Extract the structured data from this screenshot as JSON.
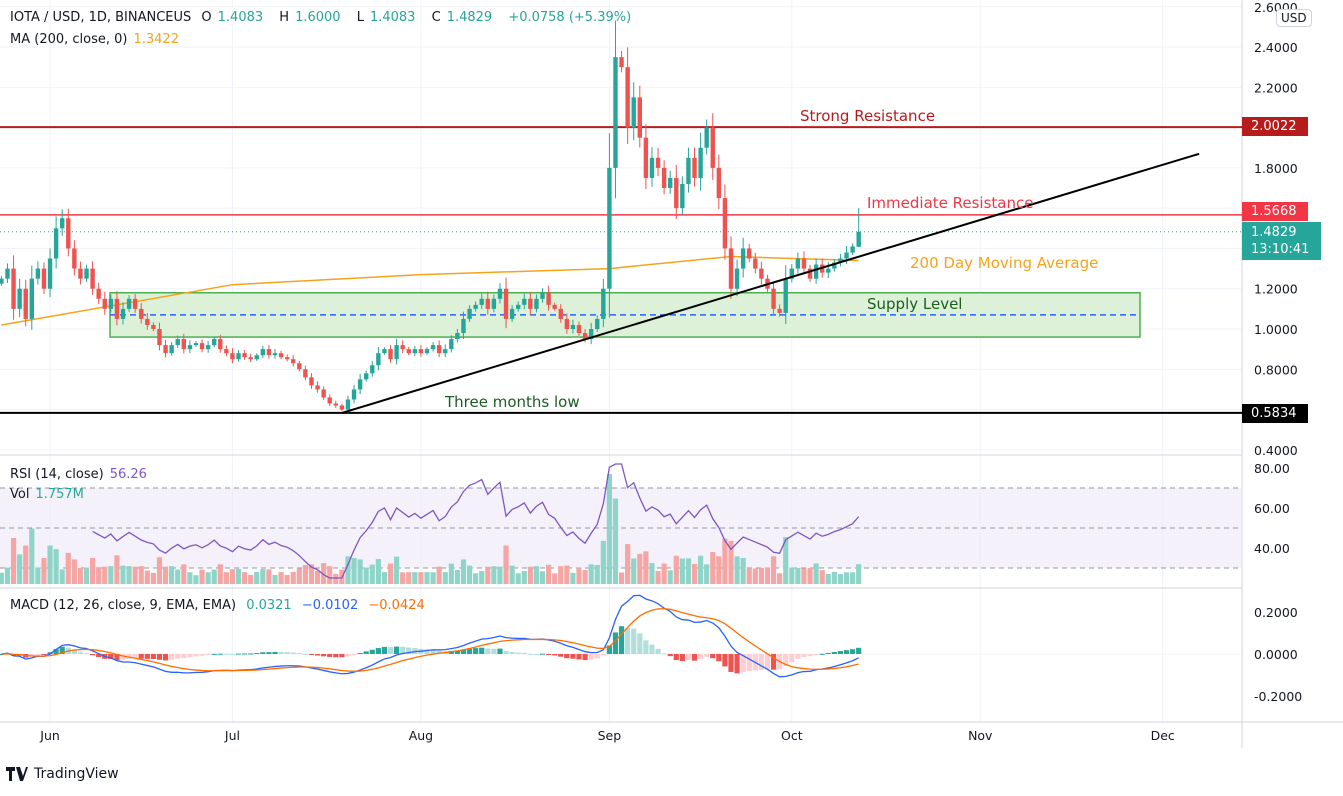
{
  "header": {
    "symbol": "IOTA / USD, 1D, BINANCEUS",
    "o_label": "O",
    "open": "1.4083",
    "h_label": "H",
    "high": "1.6000",
    "l_label": "L",
    "low": "1.4083",
    "c_label": "C",
    "close": "1.4829",
    "change": "+0.0758 (+5.39%)"
  },
  "ma_legend": {
    "label": "MA (200, close, 0)",
    "value": "1.3422"
  },
  "rsi_legend": {
    "label": "RSI (14, close)",
    "value": "56.26"
  },
  "vol_legend": {
    "label": "Vol",
    "value": "1.757M"
  },
  "macd_legend": {
    "label": "MACD (12, 26, close, 9, EMA, EMA)",
    "hist": "0.0321",
    "macd": "−0.0102",
    "signal": "−0.0424"
  },
  "currency_label": "USD",
  "price_tags": {
    "strong": "2.0022",
    "immediate": "1.5668",
    "last": "1.4829",
    "countdown": "13:10:41",
    "low": "0.5834"
  },
  "annotations": {
    "strong": "Strong Resistance",
    "immediate": "Immediate Resistance",
    "ma": "200 Day Moving Average",
    "supply": "Supply Level",
    "low": "Three months low"
  },
  "footer": {
    "brand": "TradingView"
  },
  "colors": {
    "up": "#26a69a",
    "down": "#ef5350",
    "strong": "#b71c1c",
    "immediate": "#f23645",
    "ma": "#f7a21b",
    "rsi": "#7e57c2",
    "macd": "#2962ff",
    "signal": "#ff6d00",
    "supply_fill": "#dcf1d7",
    "supply_border": "#4caf50",
    "supply_mid": "#2962ff"
  },
  "chart_data": {
    "type": "candlestick",
    "start_date": "2021-05-24",
    "closes": [
      1.25,
      1.3,
      1.1,
      1.2,
      1.05,
      1.25,
      1.3,
      1.2,
      1.35,
      1.5,
      1.55,
      1.4,
      1.3,
      1.25,
      1.3,
      1.2,
      1.15,
      1.1,
      1.15,
      1.05,
      1.1,
      1.15,
      1.1,
      1.05,
      1.02,
      1.0,
      0.92,
      0.88,
      0.92,
      0.95,
      0.9,
      0.92,
      0.93,
      0.9,
      0.92,
      0.95,
      0.9,
      0.88,
      0.85,
      0.88,
      0.86,
      0.85,
      0.87,
      0.9,
      0.87,
      0.88,
      0.86,
      0.85,
      0.83,
      0.8,
      0.76,
      0.72,
      0.7,
      0.66,
      0.63,
      0.62,
      0.6,
      0.65,
      0.7,
      0.75,
      0.78,
      0.82,
      0.88,
      0.9,
      0.85,
      0.92,
      0.9,
      0.88,
      0.9,
      0.88,
      0.9,
      0.92,
      0.88,
      0.9,
      0.95,
      0.98,
      1.05,
      1.1,
      1.12,
      1.15,
      1.1,
      1.15,
      1.2,
      1.05,
      1.1,
      1.12,
      1.15,
      1.1,
      1.15,
      1.18,
      1.12,
      1.1,
      1.05,
      1.0,
      1.02,
      0.98,
      0.95,
      1.0,
      1.05,
      1.2,
      1.8,
      2.35,
      2.3,
      2.0,
      2.15,
      1.95,
      1.75,
      1.85,
      1.8,
      1.7,
      1.75,
      1.6,
      1.72,
      1.85,
      1.75,
      1.9,
      2.0,
      1.8,
      1.65,
      1.4,
      1.2,
      1.3,
      1.4,
      1.35,
      1.3,
      1.25,
      1.2,
      1.1,
      1.08,
      1.25,
      1.3,
      1.35,
      1.3,
      1.25,
      1.32,
      1.28,
      1.3,
      1.33,
      1.35,
      1.38,
      1.41,
      1.4829
    ],
    "ma200": [
      [
        "2021-05-24",
        1.02
      ],
      [
        "2021-07-01",
        1.22
      ],
      [
        "2021-08-01",
        1.27
      ],
      [
        "2021-09-01",
        1.3
      ],
      [
        "2021-09-21",
        1.36
      ],
      [
        "2021-10-12",
        1.34
      ]
    ],
    "price_axis": {
      "ticks": [
        "2.6000",
        "2.4000",
        "2.2000",
        "1.8000",
        "1.2000",
        "1.0000",
        "0.8000",
        "0.4000"
      ]
    },
    "rsi_axis": {
      "ticks": [
        "80.00",
        "60.00",
        "40.00"
      ],
      "bands": [
        70,
        50,
        30
      ]
    },
    "macd_axis": {
      "ticks": [
        "0.2000",
        "0.0000",
        "-0.2000"
      ]
    },
    "time_axis": {
      "ticks": [
        "Jun",
        "Jul",
        "Aug",
        "Sep",
        "Oct",
        "Nov",
        "Dec"
      ]
    },
    "levels": {
      "strong_resistance": 2.0022,
      "immediate_resistance": 1.5668,
      "three_month_low": 0.5834,
      "supply_zone": [
        0.96,
        1.18
      ],
      "supply_mid": 1.07
    },
    "trendline": [
      [
        "2021-07-19",
        0.5834
      ],
      [
        "2021-12-07",
        1.87
      ]
    ]
  }
}
